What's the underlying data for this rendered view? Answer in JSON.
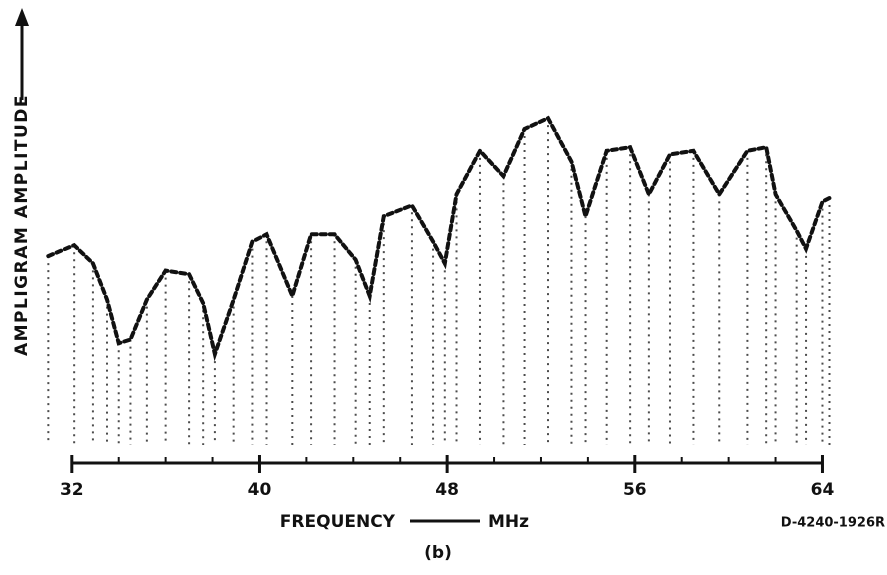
{
  "chart_data": {
    "type": "line",
    "y_label": "AMPLIGRAM AMPLITUDE",
    "x_label": "FREQUENCY",
    "x_unit": "MHz",
    "figure_code": "D-4240-1926R",
    "caption": "(b)",
    "color": "#111111",
    "xlim": [
      30.9,
      65.6
    ],
    "ylim": [
      0,
      1
    ],
    "xticks": [
      32,
      40,
      48,
      56,
      64
    ],
    "xminorticks": [
      34,
      36,
      38,
      42,
      44,
      46,
      50,
      52,
      54,
      58,
      60,
      62
    ],
    "x": [
      31.0,
      32.1,
      32.9,
      33.5,
      34.0,
      34.5,
      35.2,
      36.0,
      37.0,
      37.6,
      38.1,
      38.9,
      39.7,
      40.3,
      41.4,
      42.2,
      43.2,
      44.1,
      44.7,
      45.3,
      46.5,
      47.4,
      47.9,
      48.4,
      49.4,
      50.4,
      51.3,
      52.3,
      53.3,
      53.9,
      54.8,
      55.8,
      56.6,
      57.5,
      58.5,
      59.6,
      60.8,
      61.6,
      62.0,
      62.9,
      63.3,
      64.0,
      64.3
    ],
    "values": [
      0.57,
      0.6,
      0.55,
      0.45,
      0.33,
      0.34,
      0.45,
      0.53,
      0.52,
      0.44,
      0.3,
      0.45,
      0.61,
      0.63,
      0.46,
      0.63,
      0.63,
      0.56,
      0.46,
      0.68,
      0.71,
      0.61,
      0.55,
      0.74,
      0.86,
      0.79,
      0.92,
      0.95,
      0.83,
      0.68,
      0.86,
      0.87,
      0.74,
      0.85,
      0.86,
      0.74,
      0.86,
      0.87,
      0.74,
      0.64,
      0.59,
      0.72,
      0.73
    ]
  }
}
